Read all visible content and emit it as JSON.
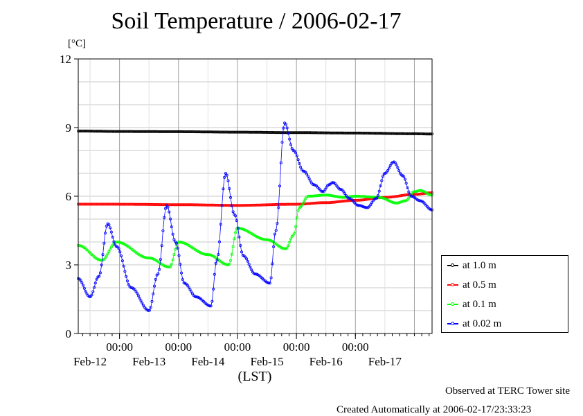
{
  "chart_data": {
    "type": "line",
    "title": "Soil Temperature / 2006-02-17",
    "ylabel": "[°C]",
    "xlabel": "(LST)",
    "ylim": [
      0,
      12
    ],
    "yticks": [
      "0",
      "3",
      "6",
      "9",
      "12"
    ],
    "xlim_days": [
      11.3,
      17.3
    ],
    "time_ticks": [
      "00:00",
      "00:00",
      "00:00",
      "00:00",
      "00:00"
    ],
    "date_labels": [
      "Feb-12",
      "Feb-13",
      "Feb-14",
      "Feb-15",
      "Feb-16",
      "Feb-17"
    ],
    "grid": true,
    "legend_position": "right",
    "series": [
      {
        "name": "at 1.0 m",
        "color": "#000000",
        "x": [
          11.3,
          12.0,
          13.0,
          14.0,
          15.0,
          16.0,
          17.0,
          17.3
        ],
        "values": [
          8.85,
          8.83,
          8.82,
          8.8,
          8.78,
          8.76,
          8.73,
          8.72
        ]
      },
      {
        "name": "at 0.5 m",
        "color": "#ff0000",
        "x": [
          11.3,
          12.0,
          13.0,
          14.0,
          15.0,
          15.5,
          16.0,
          16.5,
          17.0,
          17.3
        ],
        "values": [
          5.65,
          5.65,
          5.63,
          5.6,
          5.65,
          5.72,
          5.82,
          5.95,
          6.08,
          6.15
        ]
      },
      {
        "name": "at 0.1 m",
        "color": "#00ff00",
        "x": [
          11.3,
          11.7,
          11.95,
          12.5,
          12.85,
          13.0,
          13.5,
          13.85,
          14.0,
          14.5,
          14.82,
          14.95,
          15.05,
          15.2,
          15.5,
          15.8,
          16.0,
          16.4,
          16.7,
          16.85,
          17.0,
          17.1,
          17.3
        ],
        "values": [
          3.85,
          3.2,
          4.0,
          3.3,
          2.9,
          4.0,
          3.45,
          3.0,
          4.6,
          4.1,
          3.7,
          4.3,
          5.5,
          6.0,
          6.05,
          5.95,
          6.0,
          5.95,
          5.7,
          5.8,
          6.2,
          6.25,
          6.05
        ]
      },
      {
        "name": "at 0.02 m",
        "color": "#0000ff",
        "x": [
          11.3,
          11.5,
          11.65,
          11.8,
          11.95,
          12.2,
          12.5,
          12.65,
          12.8,
          12.95,
          13.1,
          13.3,
          13.55,
          13.65,
          13.8,
          13.95,
          14.1,
          14.3,
          14.55,
          14.65,
          14.8,
          14.95,
          15.12,
          15.3,
          15.45,
          15.55,
          15.62,
          15.75,
          15.9,
          16.05,
          16.2,
          16.35,
          16.5,
          16.65,
          16.8,
          16.95,
          17.1,
          17.3
        ],
        "values": [
          2.4,
          1.6,
          2.5,
          4.8,
          3.8,
          2.0,
          1.0,
          2.6,
          5.6,
          4.0,
          2.2,
          1.6,
          1.2,
          3.2,
          7.0,
          5.2,
          3.4,
          2.6,
          2.2,
          4.5,
          9.2,
          8.0,
          7.1,
          6.5,
          6.2,
          6.5,
          6.6,
          6.3,
          5.9,
          5.6,
          5.5,
          5.9,
          7.0,
          7.5,
          6.9,
          6.0,
          5.8,
          5.4
        ]
      }
    ]
  },
  "legend": {
    "items": [
      {
        "label": "at 1.0 m",
        "color": "#000000"
      },
      {
        "label": "at 0.5 m",
        "color": "#ff0000"
      },
      {
        "label": "at 0.1 m",
        "color": "#00ff00"
      },
      {
        "label": "at 0.02 m",
        "color": "#0000ff"
      }
    ]
  },
  "notes": {
    "observed": "Observed at TERC Tower site",
    "created": "Created Automatically at 2006-02-17/23:33:23"
  }
}
